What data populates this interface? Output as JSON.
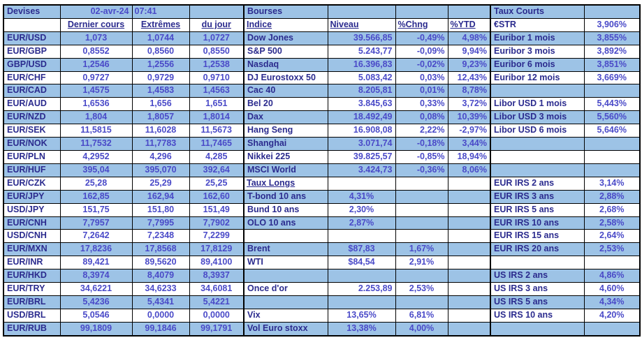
{
  "meta": {
    "date": "02-avr-24",
    "time": "07:41"
  },
  "colors": {
    "row_highlight": "#9DC3E6",
    "label_ink": "#2B2B8E",
    "value_ink": "#4A4AC8",
    "grid": "#000000"
  },
  "devises": {
    "title": "Devises",
    "columns": [
      "Dernier cours",
      "Extrêmes",
      "du jour"
    ],
    "rows": [
      {
        "pair": "EUR/USD",
        "last": "1,073",
        "high": "1,0744",
        "low": "1,0727"
      },
      {
        "pair": "EUR/GBP",
        "last": "0,8552",
        "high": "0,8560",
        "low": "0,8550"
      },
      {
        "pair": "GBP/USD",
        "last": "1,2546",
        "high": "1,2556",
        "low": "1,2538"
      },
      {
        "pair": "EUR/CHF",
        "last": "0,9727",
        "high": "0,9729",
        "low": "0,9710"
      },
      {
        "pair": "EUR/CAD",
        "last": "1,4575",
        "high": "1,4583",
        "low": "1,4563"
      },
      {
        "pair": "EUR/AUD",
        "last": "1,6536",
        "high": "1,656",
        "low": "1,651"
      },
      {
        "pair": "EUR/NZD",
        "last": "1,804",
        "high": "1,8057",
        "low": "1,8014"
      },
      {
        "pair": "EUR/SEK",
        "last": "11,5815",
        "high": "11,6028",
        "low": "11,5673"
      },
      {
        "pair": "EUR/NOK",
        "last": "11,7532",
        "high": "11,7783",
        "low": "11,7465"
      },
      {
        "pair": "EUR/PLN",
        "last": "4,2952",
        "high": "4,296",
        "low": "4,285"
      },
      {
        "pair": "EUR/HUF",
        "last": "395,04",
        "high": "395,070",
        "low": "392,64"
      },
      {
        "pair": "EUR/CZK",
        "last": "25,28",
        "high": "25,29",
        "low": "25,25"
      },
      {
        "pair": "EUR/JPY",
        "last": "162,85",
        "high": "162,94",
        "low": "162,60"
      },
      {
        "pair": "USD/JPY",
        "last": "151,75",
        "high": "151,80",
        "low": "151,49"
      },
      {
        "pair": "EUR/CNH",
        "last": "7,7957",
        "high": "7,7995",
        "low": "7,7902"
      },
      {
        "pair": "USD/CNH",
        "last": "7,2642",
        "high": "7,2348",
        "low": "7,2299"
      },
      {
        "pair": "EUR/MXN",
        "last": "17,8236",
        "high": "17,8568",
        "low": "17,8129"
      },
      {
        "pair": "EUR/INR",
        "last": "89,421",
        "high": "89,5620",
        "low": "89,4100"
      },
      {
        "pair": "EUR/HKD",
        "last": "8,3974",
        "high": "8,4079",
        "low": "8,3937"
      },
      {
        "pair": "EUR/TRY",
        "last": "34,6221",
        "high": "34,6233",
        "low": "34,6081"
      },
      {
        "pair": "EUR/BRL",
        "last": "5,4236",
        "high": "5,4341",
        "low": "5,4221"
      },
      {
        "pair": "USD/BRL",
        "last": "5,0546",
        "high": "0,0000",
        "low": "0,0000"
      },
      {
        "pair": "EUR/RUB",
        "last": "99,1809",
        "high": "99,1846",
        "low": "99,1791"
      }
    ]
  },
  "bourses": {
    "title": "Bourses",
    "columns": [
      "Indice",
      "Niveau",
      "%Chng",
      "%YTD"
    ],
    "rows": [
      {
        "t": "index",
        "label": "Dow Jones",
        "niveau": "39.566,85",
        "chng": "-0,49%",
        "ytd": "4,98%"
      },
      {
        "t": "index",
        "label": "S&P 500",
        "niveau": "5.243,77",
        "chng": "-0,09%",
        "ytd": "9,94%"
      },
      {
        "t": "index",
        "label": "Nasdaq",
        "niveau": "16.396,83",
        "chng": "-0,02%",
        "ytd": "9,23%"
      },
      {
        "t": "index",
        "label": "DJ Eurostoxx 50",
        "niveau": "5.083,42",
        "chng": "0,03%",
        "ytd": "12,43%"
      },
      {
        "t": "index",
        "label": "Cac 40",
        "niveau": "8.205,81",
        "chng": "0,01%",
        "ytd": "8,78%"
      },
      {
        "t": "index",
        "label": "Bel 20",
        "niveau": "3.845,63",
        "chng": "0,33%",
        "ytd": "3,72%"
      },
      {
        "t": "index",
        "label": "Dax",
        "niveau": "18.492,49",
        "chng": "0,08%",
        "ytd": "10,39%"
      },
      {
        "t": "index",
        "label": "Hang Seng",
        "niveau": "16.908,08",
        "chng": "2,22%",
        "ytd": "-2,97%"
      },
      {
        "t": "index",
        "label": "Shanghai",
        "niveau": "3.071,74",
        "chng": "-0,18%",
        "ytd": "3,44%"
      },
      {
        "t": "index",
        "label": "Nikkei 225",
        "niveau": "39.825,57",
        "chng": "-0,85%",
        "ytd": "18,94%"
      },
      {
        "t": "index",
        "label": "MSCI World",
        "niveau": "3.424,73",
        "chng": "-0,36%",
        "ytd": "8,06%"
      },
      {
        "t": "section",
        "label": "Taux Longs",
        "niveau": "",
        "chng": "",
        "ytd": ""
      },
      {
        "t": "rate",
        "label": "T-bond 10 ans",
        "niveau": "4,31%",
        "chng": "",
        "ytd": ""
      },
      {
        "t": "rate",
        "label": "Bund 10 ans",
        "niveau": "2,30%",
        "chng": "",
        "ytd": ""
      },
      {
        "t": "rate",
        "label": "OLO 10 ans",
        "niveau": "2,87%",
        "chng": "",
        "ytd": ""
      },
      {
        "t": "blank",
        "label": "",
        "niveau": "",
        "chng": "",
        "ytd": ""
      },
      {
        "t": "rate",
        "label": "Brent",
        "niveau": "$87,83",
        "chng": "1,67%",
        "ytd": ""
      },
      {
        "t": "rate",
        "label": "WTI",
        "niveau": "$84,54",
        "chng": "2,91%",
        "ytd": ""
      },
      {
        "t": "blank",
        "label": "",
        "niveau": "",
        "chng": "",
        "ytd": ""
      },
      {
        "t": "gold",
        "label": "Once d'or",
        "niveau": "2.253,89",
        "chng": "2,53%",
        "ytd": ""
      },
      {
        "t": "blank",
        "label": "",
        "niveau": "",
        "chng": "",
        "ytd": ""
      },
      {
        "t": "rate",
        "label": "Vix",
        "niveau": "13,65%",
        "chng": "6,81%",
        "ytd": ""
      },
      {
        "t": "rate",
        "label": "Vol Euro stoxx",
        "niveau": "13,38%",
        "chng": "4,00%",
        "ytd": ""
      }
    ]
  },
  "taux_courts": {
    "title": "Taux Courts",
    "rows": [
      {
        "label": "€STR",
        "value": "3,906%"
      },
      {
        "label": "Euribor 1 mois",
        "value": "3,855%"
      },
      {
        "label": "Euribor 3 mois",
        "value": "3,892%"
      },
      {
        "label": "Euribor 6 mois",
        "value": "3,851%"
      },
      {
        "label": "Euribor 12 mois",
        "value": "3,669%"
      },
      {
        "label": "",
        "value": ""
      },
      {
        "label": "Libor USD 1 mois",
        "value": "5,443%"
      },
      {
        "label": "Libor USD 3 mois",
        "value": "5,560%"
      },
      {
        "label": "Libor USD 6 mois",
        "value": "5,646%"
      },
      {
        "label": "",
        "value": ""
      },
      {
        "label": "",
        "value": ""
      },
      {
        "label": "",
        "value": ""
      },
      {
        "label": "EUR IRS 2 ans",
        "value": "3,14%"
      },
      {
        "label": "EUR IRS 3 ans",
        "value": "2,88%"
      },
      {
        "label": "EUR IRS 5 ans",
        "value": "2,68%"
      },
      {
        "label": "EUR IRS 10 ans",
        "value": "2,58%"
      },
      {
        "label": "EUR IRS 15 ans",
        "value": "2,64%"
      },
      {
        "label": "EUR IRS 20 ans",
        "value": "2,53%"
      },
      {
        "label": "",
        "value": ""
      },
      {
        "label": "US IRS 2 ans",
        "value": "4,86%"
      },
      {
        "label": "US IRS 3 ans",
        "value": "4,60%"
      },
      {
        "label": "US IRS 5 ans",
        "value": "4,34%"
      },
      {
        "label": "US IRS 10 ans",
        "value": "4,20%"
      },
      {
        "label": "",
        "value": ""
      }
    ]
  }
}
